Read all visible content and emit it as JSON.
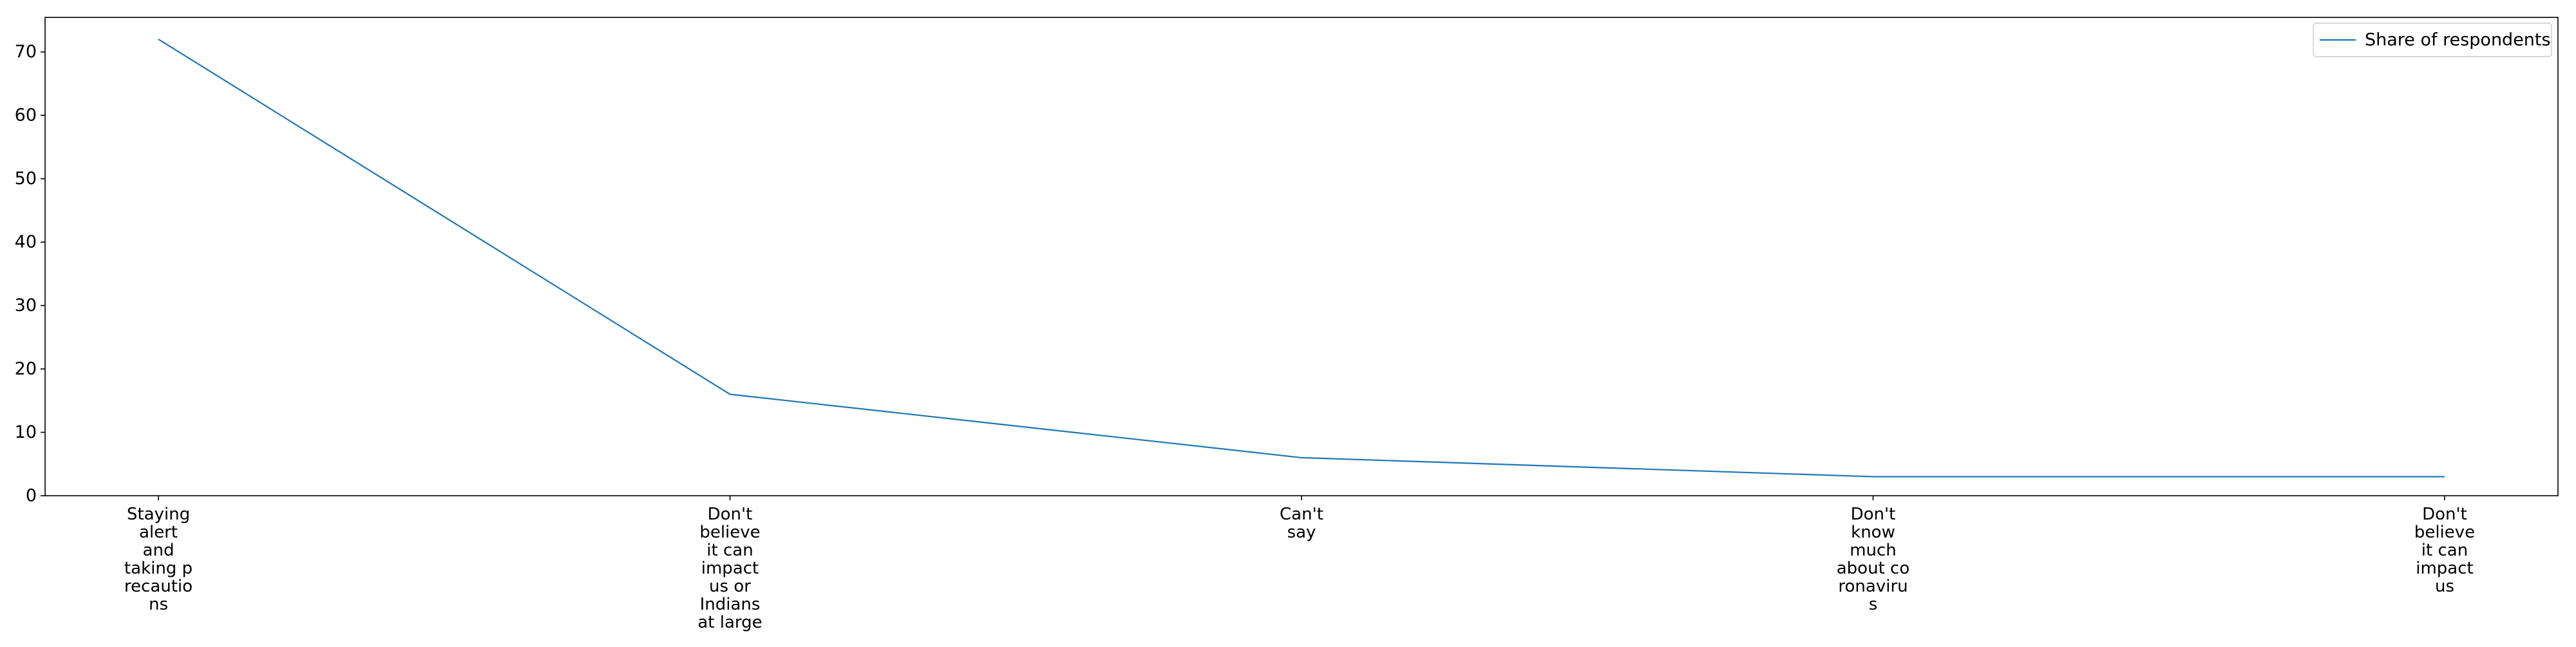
{
  "chart_data": {
    "type": "line",
    "categories": [
      "Staying alert and taking precautions",
      "Don't believe it can impact us or Indians at large",
      "Can't say",
      "Don't know much about coronavirus",
      "Don't believe it can impact us"
    ],
    "category_tick_lines": [
      [
        "Staying",
        "alert",
        "and",
        "taking p",
        "recautio",
        "ns"
      ],
      [
        "Don't",
        "believe",
        "it can",
        "impact",
        "us or",
        "Indians",
        "at large"
      ],
      [
        "Can't",
        "say"
      ],
      [
        "Don't",
        "know",
        "much",
        "about co",
        "ronaviru",
        "s"
      ],
      [
        "Don't",
        "believe",
        "it can",
        "impact",
        "us"
      ]
    ],
    "series": [
      {
        "name": "Share of respondents",
        "values": [
          72,
          16,
          6,
          3,
          3
        ],
        "color": "#1f77b4"
      }
    ],
    "ylim": [
      0,
      75.45
    ],
    "yticks": [
      0,
      10,
      20,
      30,
      40,
      50,
      60,
      70
    ],
    "xlabel": "",
    "ylabel": "",
    "title": "",
    "legend": "top-right",
    "grid": false
  }
}
